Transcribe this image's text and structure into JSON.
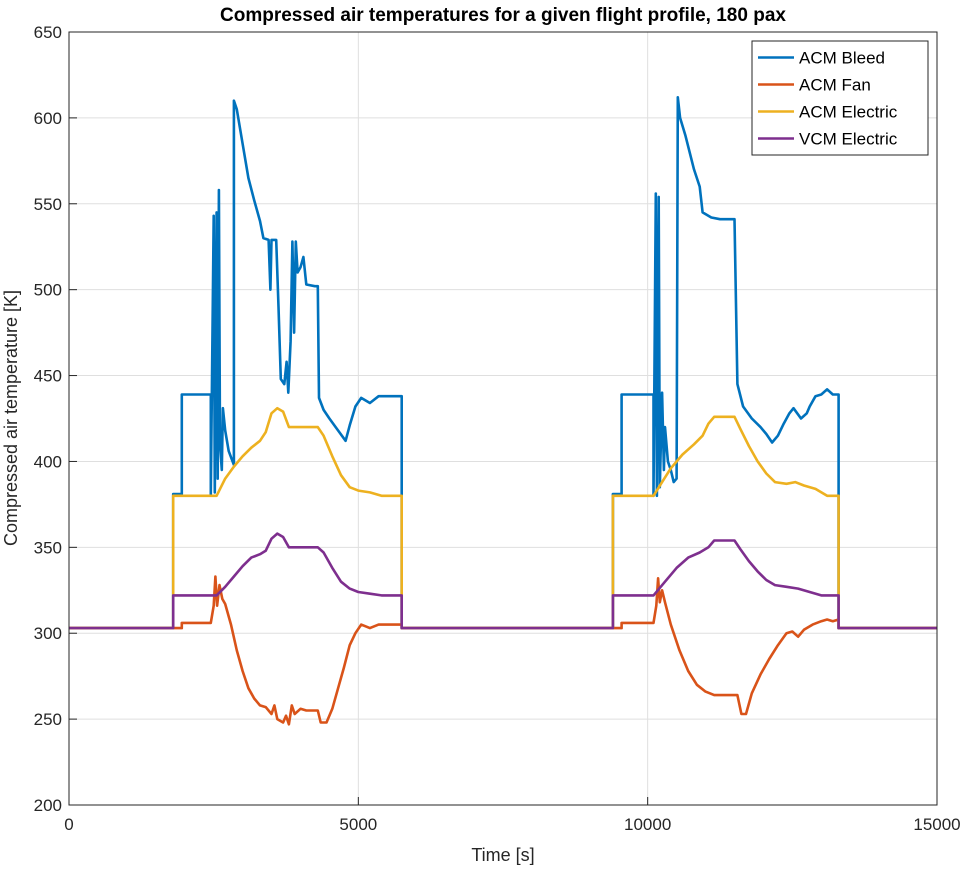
{
  "chart_data": {
    "type": "line",
    "title": "Compressed air temperatures for a given flight profile, 180 pax",
    "xlabel": "Time [s]",
    "ylabel": "Compressed air temperature [K]",
    "xlim": [
      0,
      15000
    ],
    "ylim": [
      200,
      650
    ],
    "xticks": [
      0,
      5000,
      10000,
      15000
    ],
    "xtick_labels": [
      "0",
      "5000",
      "10000",
      "15000"
    ],
    "yticks": [
      200,
      250,
      300,
      350,
      400,
      450,
      500,
      550,
      600,
      650
    ],
    "ytick_labels": [
      "200",
      "250",
      "300",
      "350",
      "400",
      "450",
      "500",
      "550",
      "600",
      "650"
    ],
    "grid": true,
    "legend_position": "top-right",
    "series": [
      {
        "name": "ACM Bleed",
        "color": "#0072BD",
        "points": [
          [
            0,
            303
          ],
          [
            1800,
            303
          ],
          [
            1800,
            381
          ],
          [
            1950,
            381
          ],
          [
            1950,
            439
          ],
          [
            2450,
            439
          ],
          [
            2450,
            381
          ],
          [
            2500,
            543
          ],
          [
            2520,
            382
          ],
          [
            2550,
            545
          ],
          [
            2570,
            390
          ],
          [
            2590,
            558
          ],
          [
            2610,
            410
          ],
          [
            2640,
            395
          ],
          [
            2660,
            431
          ],
          [
            2700,
            418
          ],
          [
            2760,
            406
          ],
          [
            2850,
            398
          ],
          [
            2850,
            610
          ],
          [
            2900,
            605
          ],
          [
            3000,
            585
          ],
          [
            3100,
            565
          ],
          [
            3200,
            552
          ],
          [
            3300,
            540
          ],
          [
            3360,
            530
          ],
          [
            3450,
            529
          ],
          [
            3480,
            500
          ],
          [
            3500,
            529
          ],
          [
            3580,
            529
          ],
          [
            3620,
            490
          ],
          [
            3660,
            448
          ],
          [
            3720,
            445
          ],
          [
            3760,
            458
          ],
          [
            3790,
            440
          ],
          [
            3830,
            470
          ],
          [
            3860,
            528
          ],
          [
            3890,
            475
          ],
          [
            3920,
            528
          ],
          [
            3950,
            510
          ],
          [
            4000,
            513
          ],
          [
            4050,
            519
          ],
          [
            4100,
            503
          ],
          [
            4250,
            502
          ],
          [
            4300,
            502
          ],
          [
            4320,
            437
          ],
          [
            4400,
            430
          ],
          [
            4500,
            425
          ],
          [
            4650,
            418
          ],
          [
            4780,
            412
          ],
          [
            4850,
            421
          ],
          [
            4950,
            432
          ],
          [
            5050,
            437
          ],
          [
            5200,
            434
          ],
          [
            5350,
            438
          ],
          [
            5600,
            438
          ],
          [
            5750,
            438
          ],
          [
            5750,
            303
          ],
          [
            9400,
            303
          ],
          [
            9400,
            381
          ],
          [
            9550,
            381
          ],
          [
            9550,
            439
          ],
          [
            10100,
            439
          ],
          [
            10100,
            380
          ],
          [
            10140,
            556
          ],
          [
            10160,
            380
          ],
          [
            10190,
            554
          ],
          [
            10210,
            385
          ],
          [
            10250,
            440
          ],
          [
            10280,
            395
          ],
          [
            10300,
            420
          ],
          [
            10350,
            400
          ],
          [
            10400,
            395
          ],
          [
            10450,
            388
          ],
          [
            10500,
            390
          ],
          [
            10520,
            612
          ],
          [
            10560,
            600
          ],
          [
            10650,
            590
          ],
          [
            10800,
            570
          ],
          [
            10900,
            560
          ],
          [
            10950,
            545
          ],
          [
            11100,
            542
          ],
          [
            11250,
            541
          ],
          [
            11450,
            541
          ],
          [
            11500,
            541
          ],
          [
            11550,
            445
          ],
          [
            11650,
            432
          ],
          [
            11800,
            425
          ],
          [
            11950,
            420
          ],
          [
            12050,
            416
          ],
          [
            12150,
            411
          ],
          [
            12250,
            415
          ],
          [
            12350,
            422
          ],
          [
            12450,
            428
          ],
          [
            12520,
            431
          ],
          [
            12650,
            425
          ],
          [
            12750,
            428
          ],
          [
            12800,
            432
          ],
          [
            12900,
            438
          ],
          [
            13000,
            439
          ],
          [
            13100,
            442
          ],
          [
            13200,
            439
          ],
          [
            13300,
            439
          ],
          [
            13300,
            303
          ],
          [
            15000,
            303
          ]
        ]
      },
      {
        "name": "ACM Fan",
        "color": "#D95319",
        "points": [
          [
            0,
            303
          ],
          [
            1950,
            303
          ],
          [
            1950,
            306
          ],
          [
            2450,
            306
          ],
          [
            2500,
            316
          ],
          [
            2530,
            333
          ],
          [
            2560,
            316
          ],
          [
            2600,
            328
          ],
          [
            2650,
            320
          ],
          [
            2700,
            317
          ],
          [
            2800,
            305
          ],
          [
            2900,
            290
          ],
          [
            3000,
            278
          ],
          [
            3100,
            268
          ],
          [
            3200,
            262
          ],
          [
            3300,
            258
          ],
          [
            3400,
            257
          ],
          [
            3500,
            253
          ],
          [
            3550,
            258
          ],
          [
            3600,
            250
          ],
          [
            3700,
            248
          ],
          [
            3750,
            252
          ],
          [
            3800,
            247
          ],
          [
            3850,
            258
          ],
          [
            3900,
            253
          ],
          [
            4000,
            256
          ],
          [
            4100,
            255
          ],
          [
            4300,
            255
          ],
          [
            4350,
            248
          ],
          [
            4450,
            248
          ],
          [
            4550,
            256
          ],
          [
            4650,
            268
          ],
          [
            4750,
            280
          ],
          [
            4850,
            293
          ],
          [
            4950,
            300
          ],
          [
            5050,
            305
          ],
          [
            5200,
            303
          ],
          [
            5350,
            305
          ],
          [
            5750,
            305
          ],
          [
            5750,
            303
          ],
          [
            9550,
            303
          ],
          [
            9550,
            306
          ],
          [
            10100,
            306
          ],
          [
            10150,
            316
          ],
          [
            10180,
            332
          ],
          [
            10210,
            318
          ],
          [
            10250,
            325
          ],
          [
            10300,
            318
          ],
          [
            10400,
            305
          ],
          [
            10550,
            290
          ],
          [
            10700,
            278
          ],
          [
            10850,
            270
          ],
          [
            11000,
            266
          ],
          [
            11150,
            264
          ],
          [
            11400,
            264
          ],
          [
            11550,
            264
          ],
          [
            11620,
            253
          ],
          [
            11700,
            253
          ],
          [
            11800,
            265
          ],
          [
            11950,
            276
          ],
          [
            12100,
            285
          ],
          [
            12250,
            293
          ],
          [
            12400,
            300
          ],
          [
            12500,
            301
          ],
          [
            12600,
            298
          ],
          [
            12700,
            302
          ],
          [
            12850,
            305
          ],
          [
            13000,
            307
          ],
          [
            13100,
            308
          ],
          [
            13200,
            307
          ],
          [
            13300,
            308
          ],
          [
            13300,
            303
          ],
          [
            15000,
            303
          ]
        ]
      },
      {
        "name": "ACM Electric",
        "color": "#EDB120",
        "points": [
          [
            0,
            303
          ],
          [
            1800,
            303
          ],
          [
            1800,
            380
          ],
          [
            2550,
            380
          ],
          [
            2700,
            390
          ],
          [
            2850,
            397
          ],
          [
            3000,
            403
          ],
          [
            3150,
            408
          ],
          [
            3300,
            412
          ],
          [
            3400,
            417
          ],
          [
            3500,
            428
          ],
          [
            3600,
            431
          ],
          [
            3700,
            429
          ],
          [
            3800,
            420
          ],
          [
            4300,
            420
          ],
          [
            4400,
            415
          ],
          [
            4550,
            403
          ],
          [
            4700,
            392
          ],
          [
            4850,
            385
          ],
          [
            5000,
            383
          ],
          [
            5200,
            382
          ],
          [
            5400,
            380
          ],
          [
            5750,
            380
          ],
          [
            5750,
            303
          ],
          [
            9400,
            303
          ],
          [
            9400,
            380
          ],
          [
            10100,
            380
          ],
          [
            10250,
            388
          ],
          [
            10400,
            396
          ],
          [
            10600,
            404
          ],
          [
            10800,
            410
          ],
          [
            10950,
            415
          ],
          [
            11050,
            422
          ],
          [
            11150,
            426
          ],
          [
            11400,
            426
          ],
          [
            11500,
            426
          ],
          [
            11600,
            419
          ],
          [
            11750,
            409
          ],
          [
            11900,
            400
          ],
          [
            12050,
            393
          ],
          [
            12200,
            388
          ],
          [
            12400,
            387
          ],
          [
            12550,
            388
          ],
          [
            12700,
            386
          ],
          [
            12900,
            384
          ],
          [
            13100,
            380
          ],
          [
            13300,
            380
          ],
          [
            13300,
            303
          ],
          [
            15000,
            303
          ]
        ]
      },
      {
        "name": "VCM Electric",
        "color": "#7E2F8E",
        "points": [
          [
            0,
            303
          ],
          [
            1800,
            303
          ],
          [
            1800,
            322
          ],
          [
            2550,
            322
          ],
          [
            2700,
            327
          ],
          [
            2850,
            333
          ],
          [
            3000,
            339
          ],
          [
            3150,
            344
          ],
          [
            3300,
            346
          ],
          [
            3400,
            348
          ],
          [
            3500,
            355
          ],
          [
            3600,
            358
          ],
          [
            3700,
            356
          ],
          [
            3800,
            350
          ],
          [
            4300,
            350
          ],
          [
            4400,
            347
          ],
          [
            4550,
            338
          ],
          [
            4700,
            330
          ],
          [
            4850,
            326
          ],
          [
            5000,
            324
          ],
          [
            5200,
            323
          ],
          [
            5400,
            322
          ],
          [
            5750,
            322
          ],
          [
            5750,
            303
          ],
          [
            9400,
            303
          ],
          [
            9400,
            322
          ],
          [
            10100,
            322
          ],
          [
            10300,
            330
          ],
          [
            10500,
            338
          ],
          [
            10700,
            344
          ],
          [
            10900,
            347
          ],
          [
            11050,
            350
          ],
          [
            11150,
            354
          ],
          [
            11400,
            354
          ],
          [
            11500,
            354
          ],
          [
            11600,
            349
          ],
          [
            11750,
            342
          ],
          [
            11900,
            336
          ],
          [
            12050,
            331
          ],
          [
            12200,
            328
          ],
          [
            12400,
            327
          ],
          [
            12600,
            326
          ],
          [
            12800,
            324
          ],
          [
            13000,
            322
          ],
          [
            13300,
            322
          ],
          [
            13300,
            303
          ],
          [
            15000,
            303
          ]
        ]
      }
    ]
  }
}
